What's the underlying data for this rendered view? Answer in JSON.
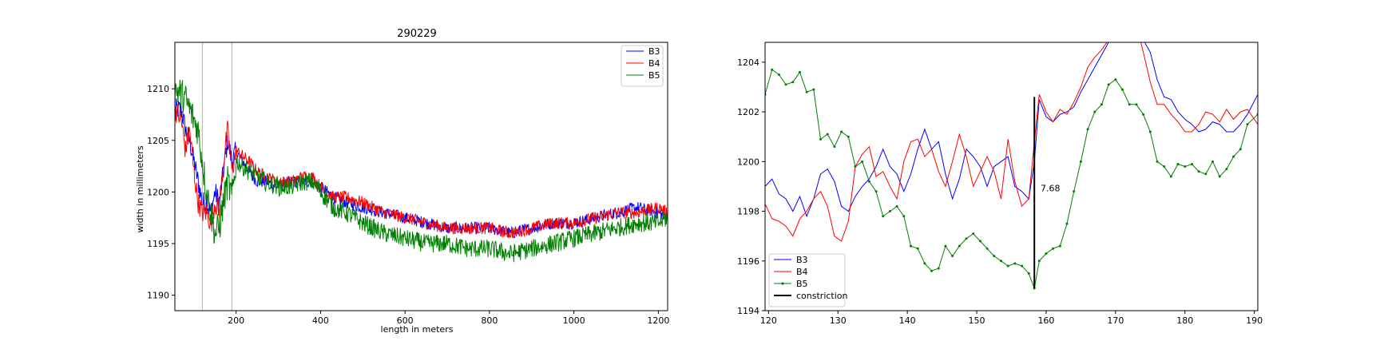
{
  "chart_data": [
    {
      "type": "line",
      "title": "290229",
      "xlabel": "length in meters",
      "ylabel": "width in millimeters",
      "xlim": [
        55,
        1222
      ],
      "ylim": [
        1188.5,
        1214.5
      ],
      "xticks": [
        200,
        400,
        600,
        800,
        1000,
        1200
      ],
      "yticks": [
        1190,
        1195,
        1200,
        1205,
        1210
      ],
      "xtick_labels": [
        "200",
        "400",
        "600",
        "800",
        "1000",
        "1200"
      ],
      "ytick_labels": [
        "1190",
        "1195",
        "1200",
        "1205",
        "1210"
      ],
      "vlines": [
        120,
        190
      ],
      "legend_position": "upper right",
      "grid": false,
      "series": [
        {
          "name": "B3",
          "color": "#0000ff",
          "x": [
            55,
            70,
            80,
            90,
            100,
            110,
            120,
            130,
            140,
            150,
            160,
            170,
            180,
            190,
            200,
            215,
            230,
            250,
            270,
            300,
            330,
            360,
            380,
            400,
            430,
            460,
            500,
            550,
            600,
            650,
            700,
            750,
            800,
            850,
            900,
            950,
            1000,
            1050,
            1100,
            1150,
            1200,
            1222
          ],
          "y": [
            1208,
            1208,
            1206,
            1205,
            1203,
            1201,
            1199,
            1199,
            1198,
            1200,
            1199,
            1202,
            1205,
            1203,
            1204,
            1203,
            1202,
            1201,
            1201,
            1200.5,
            1201,
            1201,
            1201,
            1200.5,
            1199.5,
            1199,
            1198.5,
            1198,
            1197.5,
            1197,
            1196.5,
            1196.5,
            1196.5,
            1196,
            1196.5,
            1197,
            1197,
            1197.5,
            1198,
            1198.5,
            1198,
            1197.5
          ]
        },
        {
          "name": "B4",
          "color": "#ff0000",
          "x": [
            55,
            70,
            80,
            90,
            100,
            110,
            120,
            130,
            140,
            150,
            160,
            170,
            180,
            190,
            200,
            215,
            230,
            250,
            270,
            300,
            330,
            360,
            380,
            400,
            430,
            460,
            500,
            550,
            600,
            650,
            700,
            750,
            800,
            850,
            900,
            950,
            1000,
            1050,
            1100,
            1150,
            1200,
            1222
          ],
          "y": [
            1208,
            1207,
            1204,
            1206,
            1202,
            1199,
            1198,
            1198,
            1197,
            1199,
            1198,
            1203,
            1206,
            1202,
            1204,
            1203.5,
            1203,
            1202,
            1201.5,
            1201,
            1201,
            1201.5,
            1201.5,
            1200.5,
            1199.5,
            1199.5,
            1199,
            1198,
            1197.5,
            1197,
            1196.5,
            1196.5,
            1196.5,
            1196,
            1196.5,
            1197,
            1197,
            1197.5,
            1198,
            1198,
            1198.5,
            1198
          ]
        },
        {
          "name": "B5",
          "color": "#008000",
          "x": [
            55,
            70,
            80,
            90,
            100,
            110,
            120,
            130,
            140,
            150,
            160,
            170,
            180,
            190,
            200,
            215,
            230,
            250,
            270,
            300,
            330,
            360,
            380,
            400,
            430,
            460,
            500,
            550,
            600,
            650,
            700,
            750,
            800,
            850,
            900,
            950,
            1000,
            1050,
            1100,
            1150,
            1200,
            1222
          ],
          "y": [
            1210,
            1209.5,
            1209,
            1208,
            1207,
            1206,
            1203,
            1200,
            1198,
            1196,
            1196.5,
            1199,
            1201,
            1199.5,
            1203,
            1202.5,
            1202,
            1201.5,
            1201,
            1200.5,
            1200.5,
            1201,
            1201,
            1200,
            1198.5,
            1198,
            1197,
            1196,
            1195.5,
            1195,
            1195,
            1194.5,
            1194.5,
            1194,
            1194.5,
            1195,
            1195.5,
            1196,
            1196.5,
            1197,
            1197,
            1197.5
          ]
        }
      ]
    },
    {
      "type": "line",
      "title": "",
      "xlabel": "",
      "ylabel": "",
      "xlim": [
        119.5,
        190.5
      ],
      "ylim": [
        1194,
        1204.8
      ],
      "xticks": [
        120,
        130,
        140,
        150,
        160,
        170,
        180,
        190
      ],
      "yticks": [
        1194,
        1196,
        1198,
        1200,
        1202,
        1204
      ],
      "xtick_labels": [
        "120",
        "130",
        "140",
        "150",
        "160",
        "170",
        "180",
        "190"
      ],
      "ytick_labels": [
        "1194",
        "1196",
        "1198",
        "1200",
        "1202",
        "1204"
      ],
      "legend_position": "lower left",
      "grid": false,
      "annotation": {
        "text": "7.68",
        "x": 159.2,
        "y": 1198.8
      },
      "series": [
        {
          "name": "B3",
          "color": "#0000ff",
          "x": [
            119.5,
            120.5,
            121.5,
            122.5,
            123.5,
            124.5,
            125.5,
            126.5,
            127.5,
            128.5,
            129.5,
            130.5,
            131.5,
            132.5,
            133.5,
            134.5,
            135.5,
            136.5,
            137.5,
            138.5,
            139.5,
            140.5,
            141.5,
            142.5,
            143.5,
            144.5,
            145.5,
            146.5,
            147.5,
            148.5,
            149.5,
            150.5,
            151.5,
            152.5,
            153.5,
            154.5,
            155.5,
            156.5,
            157.5,
            158.3,
            159,
            160,
            161,
            162,
            163,
            164,
            165,
            166,
            167,
            168,
            169,
            170,
            171,
            172,
            173,
            174,
            175,
            176,
            177,
            178,
            179,
            180,
            181,
            182,
            183,
            184,
            185,
            186,
            187,
            188,
            189,
            190.5
          ],
          "y": [
            1199,
            1199.3,
            1198.7,
            1198.5,
            1198,
            1198.6,
            1197.8,
            1198.5,
            1199.5,
            1199.7,
            1199.2,
            1198.2,
            1198,
            1198.6,
            1199,
            1199.3,
            1199.8,
            1200.5,
            1199.8,
            1199.5,
            1198.8,
            1199.5,
            1200.5,
            1201.3,
            1200.5,
            1200.8,
            1199.5,
            1198.5,
            1199.3,
            1200.5,
            1200.2,
            1199.8,
            1199,
            1199.8,
            1200,
            1200.2,
            1199,
            1198.8,
            1198.5,
            1200,
            1202.5,
            1201.8,
            1201.6,
            1201.9,
            1202,
            1202.2,
            1202.8,
            1203.3,
            1203.8,
            1204.3,
            1204.8,
            1205.2,
            1205.4,
            1205.3,
            1205.1,
            1204.9,
            1204.4,
            1203.3,
            1202.6,
            1202.5,
            1202,
            1201.7,
            1201.5,
            1201.2,
            1201.3,
            1201.6,
            1201.5,
            1201.2,
            1201.2,
            1201.5,
            1201.9,
            1202.7
          ]
        },
        {
          "name": "B4",
          "color": "#ff0000",
          "x": [
            119.5,
            120.5,
            121.5,
            122.5,
            123.5,
            124.5,
            125.5,
            126.5,
            127.5,
            128.5,
            129.5,
            130.5,
            131.5,
            132.5,
            133.5,
            134.5,
            135.5,
            136.5,
            137.5,
            138.5,
            139.5,
            140.5,
            141.5,
            142.5,
            143.5,
            144.5,
            145.5,
            146.5,
            147.5,
            148.5,
            149.5,
            150.5,
            151.5,
            152.5,
            153.5,
            154.5,
            155.5,
            156.5,
            157.5,
            158.3,
            159,
            160,
            161,
            162,
            163,
            164,
            165,
            166,
            167,
            168,
            169,
            170,
            171,
            172,
            173,
            174,
            175,
            176,
            177,
            178,
            179,
            180,
            181,
            182,
            183,
            184,
            185,
            186,
            187,
            188,
            189,
            190.5
          ],
          "y": [
            1198.3,
            1197.7,
            1197.6,
            1197.4,
            1197,
            1197.7,
            1198,
            1198.5,
            1198.8,
            1198.2,
            1197,
            1196.8,
            1197.6,
            1199.8,
            1200.3,
            1200.6,
            1199.4,
            1199.6,
            1199,
            1198.5,
            1200,
            1200.8,
            1200.9,
            1200.2,
            1200.5,
            1199.6,
            1199,
            1200,
            1201.1,
            1200.2,
            1199,
            1199.6,
            1200.2,
            1199.6,
            1198.5,
            1200.9,
            1199.2,
            1198.2,
            1198.5,
            1200.8,
            1202.7,
            1202,
            1201.6,
            1202.1,
            1201.9,
            1202.4,
            1203,
            1203.8,
            1204.2,
            1204.5,
            1204.9,
            1205.3,
            1205.6,
            1205.6,
            1205.5,
            1204.4,
            1203.2,
            1202.3,
            1202.3,
            1201.9,
            1201.6,
            1201.2,
            1201.2,
            1201.5,
            1202,
            1201.9,
            1201.6,
            1202.1,
            1201.7,
            1202,
            1202.1,
            1201.5
          ]
        },
        {
          "name": "B5",
          "color": "#008000",
          "x": [
            119.5,
            120.5,
            121.5,
            122.5,
            123.5,
            124.5,
            125.5,
            126.5,
            127.5,
            128.5,
            129.5,
            130.5,
            131.5,
            132.5,
            133.5,
            134.5,
            135.5,
            136.5,
            137.5,
            138.5,
            139.5,
            140.5,
            141.5,
            142.5,
            143.5,
            144.5,
            145.5,
            146.5,
            147.5,
            148.5,
            149.5,
            150.5,
            151.5,
            152.5,
            153.5,
            154.5,
            155.5,
            156.5,
            157.5,
            158.3,
            159,
            160,
            161,
            162,
            163,
            164,
            165,
            166,
            167,
            168,
            169,
            170,
            171,
            172,
            173,
            174,
            175,
            176,
            177,
            178,
            179,
            180,
            181,
            182,
            183,
            184,
            185,
            186,
            187,
            188,
            189,
            190.5
          ],
          "y": [
            1202.7,
            1203.7,
            1203.5,
            1203.1,
            1203.2,
            1203.6,
            1202.8,
            1202.9,
            1200.9,
            1201.1,
            1200.6,
            1201.2,
            1201,
            1199.8,
            1200,
            1199.2,
            1198.8,
            1197.8,
            1198,
            1198.2,
            1197.8,
            1196.6,
            1196.5,
            1195.9,
            1195.6,
            1195.7,
            1196.6,
            1196.2,
            1196.6,
            1196.9,
            1197.1,
            1196.8,
            1196.5,
            1196.2,
            1196,
            1195.8,
            1195.9,
            1195.8,
            1195.5,
            1194.9,
            1196,
            1196.3,
            1196.5,
            1196.6,
            1197.5,
            1198.8,
            1200,
            1201.3,
            1202,
            1202.3,
            1203.1,
            1203.3,
            1202.9,
            1202.3,
            1202.3,
            1201.9,
            1201.2,
            1200,
            1199.8,
            1199.4,
            1199.9,
            1199.8,
            1199.9,
            1199.6,
            1199.5,
            1200,
            1199.4,
            1199.7,
            1200.2,
            1200.5,
            1201.5,
            1201.9
          ]
        },
        {
          "name": "constriction",
          "color": "#000000",
          "x": [
            158.3,
            158.3
          ],
          "y": [
            1194.9,
            1202.6
          ]
        }
      ]
    }
  ]
}
